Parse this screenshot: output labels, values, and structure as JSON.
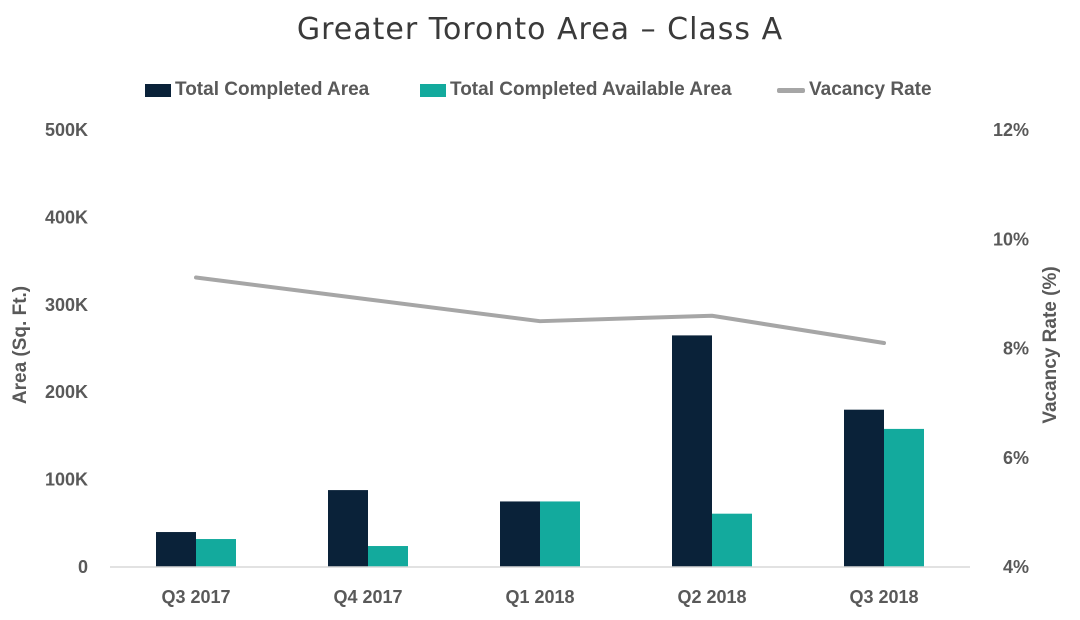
{
  "colors": {
    "total_completed": "#0a2239",
    "available": "#13aa9d",
    "vacancy": "#a6a6a6",
    "axis": "#d9d9d9"
  },
  "chart_data": {
    "type": "bar",
    "title": "Greater Toronto Area – Class A",
    "categories": [
      "Q3 2017",
      "Q4 2017",
      "Q1 2018",
      "Q2 2018",
      "Q3 2018"
    ],
    "series": [
      {
        "name": "Total Completed Area",
        "type": "bar",
        "axis": "left",
        "values": [
          40000,
          88000,
          75000,
          265000,
          180000
        ]
      },
      {
        "name": "Total Completed Available Area",
        "type": "bar",
        "axis": "left",
        "values": [
          32000,
          24000,
          75000,
          61000,
          158000
        ]
      },
      {
        "name": "Vacancy Rate",
        "type": "line",
        "axis": "right",
        "values": [
          9.3,
          8.9,
          8.5,
          8.6,
          8.1
        ]
      }
    ],
    "ylabel": "Area (Sq. Ft.)",
    "y2label": "Vacancy Rate (%)",
    "ylim": [
      0,
      500000
    ],
    "y2lim": [
      4,
      12
    ],
    "yticks": [
      "0",
      "100K",
      "200K",
      "300K",
      "400K",
      "500K"
    ],
    "y2ticks": [
      "4%",
      "6%",
      "8%",
      "10%",
      "12%"
    ],
    "grid": false,
    "legend_position": "top"
  }
}
